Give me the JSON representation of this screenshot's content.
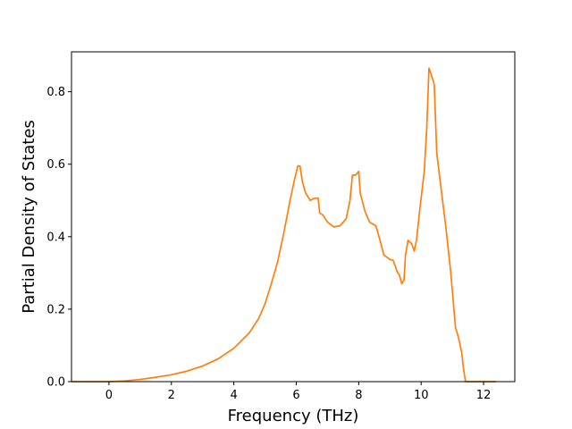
{
  "chart_data": {
    "type": "line",
    "title": "",
    "xlabel": "Frequency (THz)",
    "ylabel": "Partial Density of States",
    "xlim": [
      -1.2,
      13.0
    ],
    "ylim": [
      0.0,
      0.91
    ],
    "x_ticks": [
      0,
      2,
      4,
      6,
      8,
      10,
      12
    ],
    "x_tick_labels": [
      "0",
      "2",
      "4",
      "6",
      "8",
      "10",
      "12"
    ],
    "y_ticks": [
      0.0,
      0.2,
      0.4,
      0.6,
      0.8
    ],
    "y_tick_labels": [
      "0.0",
      "0.2",
      "0.4",
      "0.6",
      "0.8"
    ],
    "grid": false,
    "legend": false,
    "series": [
      {
        "color": "#ff7f0e",
        "points": [
          [
            -1.2,
            0.0
          ],
          [
            0.0,
            0.0
          ],
          [
            0.5,
            0.002
          ],
          [
            1.0,
            0.006
          ],
          [
            1.5,
            0.012
          ],
          [
            2.0,
            0.019
          ],
          [
            2.5,
            0.029
          ],
          [
            3.0,
            0.043
          ],
          [
            3.5,
            0.063
          ],
          [
            4.0,
            0.092
          ],
          [
            4.5,
            0.135
          ],
          [
            4.8,
            0.175
          ],
          [
            5.0,
            0.215
          ],
          [
            5.2,
            0.27
          ],
          [
            5.4,
            0.33
          ],
          [
            5.6,
            0.41
          ],
          [
            5.8,
            0.5
          ],
          [
            5.95,
            0.56
          ],
          [
            6.05,
            0.595
          ],
          [
            6.12,
            0.595
          ],
          [
            6.2,
            0.55
          ],
          [
            6.3,
            0.52
          ],
          [
            6.45,
            0.5
          ],
          [
            6.55,
            0.505
          ],
          [
            6.7,
            0.507
          ],
          [
            6.75,
            0.465
          ],
          [
            6.85,
            0.46
          ],
          [
            7.0,
            0.44
          ],
          [
            7.2,
            0.427
          ],
          [
            7.4,
            0.43
          ],
          [
            7.6,
            0.45
          ],
          [
            7.72,
            0.5
          ],
          [
            7.8,
            0.57
          ],
          [
            7.9,
            0.57
          ],
          [
            8.0,
            0.58
          ],
          [
            8.05,
            0.52
          ],
          [
            8.2,
            0.47
          ],
          [
            8.35,
            0.44
          ],
          [
            8.55,
            0.43
          ],
          [
            8.7,
            0.385
          ],
          [
            8.8,
            0.35
          ],
          [
            9.0,
            0.337
          ],
          [
            9.1,
            0.335
          ],
          [
            9.25,
            0.3
          ],
          [
            9.3,
            0.295
          ],
          [
            9.38,
            0.27
          ],
          [
            9.45,
            0.28
          ],
          [
            9.5,
            0.35
          ],
          [
            9.58,
            0.39
          ],
          [
            9.7,
            0.38
          ],
          [
            9.78,
            0.36
          ],
          [
            9.85,
            0.39
          ],
          [
            9.95,
            0.47
          ],
          [
            10.1,
            0.58
          ],
          [
            10.18,
            0.7
          ],
          [
            10.25,
            0.865
          ],
          [
            10.35,
            0.84
          ],
          [
            10.42,
            0.82
          ],
          [
            10.5,
            0.63
          ],
          [
            10.7,
            0.49
          ],
          [
            10.8,
            0.42
          ],
          [
            10.95,
            0.3
          ],
          [
            11.1,
            0.15
          ],
          [
            11.2,
            0.12
          ],
          [
            11.3,
            0.08
          ],
          [
            11.35,
            0.04
          ],
          [
            11.42,
            0.0
          ],
          [
            12.4,
            0.0
          ]
        ]
      }
    ]
  }
}
